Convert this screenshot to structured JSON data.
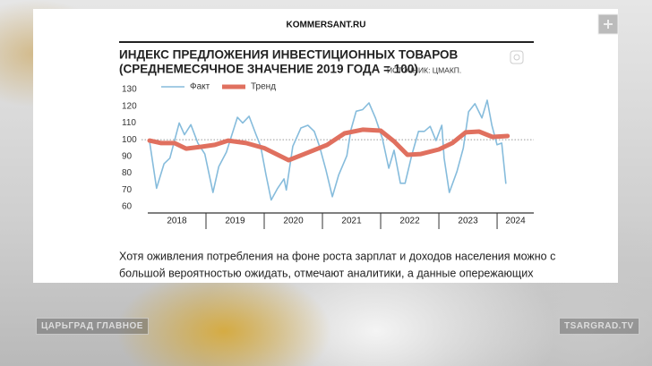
{
  "site": "KOMMERSANT.RU",
  "chart_data": {
    "type": "line",
    "title": "ИНДЕКС ПРЕДЛОЖЕНИЯ ИНВЕСТИЦИОННЫХ ТОВАРОВ",
    "subtitle": "(СРЕДНЕМЕСЯЧНОЕ ЗНАЧЕНИЕ 2019 ГОДА = 100)",
    "source": "ИСТОЧНИК: ЦМАКП.",
    "xlim": [
      2018,
      2024.63
    ],
    "xticks": [
      {
        "value": 2018,
        "label": "2018"
      },
      {
        "value": 2019,
        "label": "2019"
      },
      {
        "value": 2020,
        "label": "2020"
      },
      {
        "value": 2021,
        "label": "2021"
      },
      {
        "value": 2022,
        "label": "2022"
      },
      {
        "value": 2023,
        "label": "2023"
      },
      {
        "value": 2024,
        "label": "2024"
      }
    ],
    "ylim": [
      60,
      130
    ],
    "yticks": [
      60,
      70,
      80,
      90,
      100,
      110,
      120,
      130
    ],
    "reference_line": 100,
    "series": [
      {
        "name": "Факт",
        "color": "#86bcdc",
        "width": 1.6,
        "x": [
          2018.03,
          2018.15,
          2018.28,
          2018.38,
          2018.54,
          2018.63,
          2018.74,
          2018.86,
          2018.98,
          2019.12,
          2019.22,
          2019.35,
          2019.54,
          2019.63,
          2019.74,
          2019.86,
          2019.94,
          2020.03,
          2020.12,
          2020.23,
          2020.34,
          2020.38,
          2020.49,
          2020.63,
          2020.75,
          2020.86,
          2020.95,
          2021.06,
          2021.17,
          2021.28,
          2021.42,
          2021.49,
          2021.58,
          2021.69,
          2021.8,
          2021.91,
          2022.03,
          2022.14,
          2022.23,
          2022.34,
          2022.42,
          2022.54,
          2022.65,
          2022.75,
          2022.85,
          2022.95,
          2023.05,
          2023.09,
          2023.18,
          2023.31,
          2023.42,
          2023.51,
          2023.62,
          2023.74,
          2023.83,
          2023.91,
          2024.0,
          2024.08,
          2024.15
        ],
        "values": [
          99,
          71,
          85.7,
          89,
          110,
          103,
          109,
          98,
          91.5,
          68.5,
          84,
          92.6,
          113.4,
          110,
          114,
          103,
          96,
          79,
          64,
          71,
          76.6,
          70,
          96,
          107,
          108.6,
          105,
          96,
          82,
          66,
          79,
          90.5,
          106,
          117,
          118,
          122,
          113,
          100.6,
          83,
          93.7,
          74,
          74,
          91.5,
          105,
          105,
          108,
          99.5,
          108.6,
          89,
          68.5,
          81,
          95,
          116.7,
          121.5,
          113,
          123.6,
          108.6,
          97,
          98,
          74
        ]
      },
      {
        "name": "Тренд",
        "color": "#e0705f",
        "width": 5,
        "x": [
          2018.03,
          2018.23,
          2018.46,
          2018.66,
          2018.92,
          2019.15,
          2019.38,
          2019.69,
          2020.0,
          2020.42,
          2020.69,
          2021.08,
          2021.38,
          2021.69,
          2022.0,
          2022.23,
          2022.46,
          2022.69,
          2023.0,
          2023.23,
          2023.46,
          2023.69,
          2023.92,
          2024.18
        ],
        "values": [
          99.5,
          98,
          98,
          94.7,
          95.8,
          96.9,
          99.5,
          98,
          95,
          87.8,
          91.5,
          96.9,
          103.8,
          106,
          105.4,
          99,
          91,
          91.5,
          94.2,
          98,
          104.4,
          104.9,
          101.7,
          102.2
        ]
      }
    ]
  },
  "article": {
    "lines": [
      "Хотя оживления потребления на фоне роста зарплат и доходов населения можно с",
      "большой вероятностью ожидать, отмечают аналитики, а данные опережающих"
    ]
  },
  "overlay": {
    "left": "ЦАРЬГРАД ГЛАВНОЕ",
    "right": "TSARGRAD.TV"
  }
}
